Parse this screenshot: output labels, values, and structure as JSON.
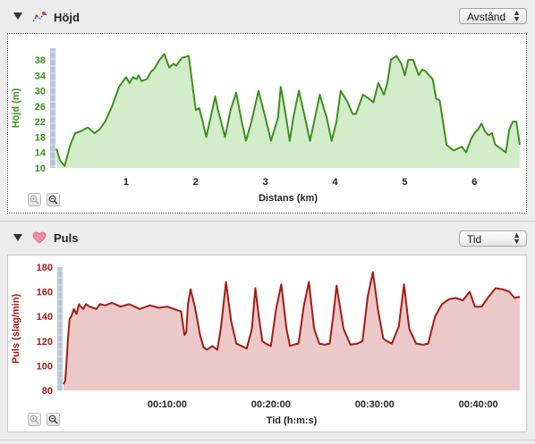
{
  "height_section": {
    "title": "Höjd",
    "axis_selector": "Avstånd",
    "ylabel": "Höjd (m)",
    "xlabel": "Distans (km)"
  },
  "pulse_section": {
    "title": "Puls",
    "axis_selector": "Tid",
    "ylabel": "Puls (slag/min)",
    "xlabel": "Tid (h:m:s)"
  },
  "chart_data": [
    {
      "type": "area",
      "xlabel": "Distans (km)",
      "ylabel": "Höjd (m)",
      "xlim": [
        0,
        6.65
      ],
      "ylim": [
        10,
        41
      ],
      "x_ticks": [
        "1",
        "2",
        "3",
        "4",
        "5",
        "6"
      ],
      "y_ticks": [
        "10",
        "14",
        "18",
        "22",
        "26",
        "30",
        "34",
        "38"
      ],
      "color": "#3d8f1e",
      "fill": "#d3ecca",
      "x": [
        0,
        0.05,
        0.12,
        0.2,
        0.27,
        0.35,
        0.45,
        0.55,
        0.62,
        0.7,
        0.8,
        0.9,
        1.0,
        1.05,
        1.1,
        1.15,
        1.18,
        1.22,
        1.3,
        1.36,
        1.4,
        1.48,
        1.55,
        1.62,
        1.68,
        1.72,
        1.8,
        1.9,
        2.0,
        2.05,
        2.1,
        2.15,
        2.2,
        2.28,
        2.32,
        2.42,
        2.5,
        2.58,
        2.66,
        2.72,
        2.8,
        2.9,
        3.0,
        3.08,
        3.18,
        3.22,
        3.28,
        3.35,
        3.4,
        3.48,
        3.58,
        3.64,
        3.7,
        3.78,
        3.88,
        3.95,
        4.02,
        4.08,
        4.18,
        4.25,
        4.3,
        4.4,
        4.48,
        4.55,
        4.62,
        4.7,
        4.75,
        4.8,
        4.88,
        4.95,
        5.0,
        5.05,
        5.12,
        5.2,
        5.25,
        5.3,
        5.4,
        5.45,
        5.5,
        5.6,
        5.7,
        5.82,
        5.88,
        5.95,
        6.0,
        6.05,
        6.1,
        6.15,
        6.2,
        6.25,
        6.3,
        6.38,
        6.45,
        6.5,
        6.55,
        6.6,
        6.65
      ],
      "y": [
        15,
        12,
        10.5,
        16,
        19,
        19.5,
        20.5,
        19,
        20,
        22,
        26,
        31,
        33.5,
        32,
        33.5,
        33,
        34,
        32.5,
        33,
        35,
        35.5,
        38,
        39.5,
        36,
        37,
        36.5,
        38.5,
        39,
        25,
        25.5,
        22,
        18,
        22,
        28.5,
        25,
        18,
        25,
        29.5,
        22,
        17,
        22,
        30,
        23,
        17,
        23,
        31,
        25,
        17,
        23,
        30,
        22,
        17,
        22,
        29,
        23,
        17,
        22,
        30,
        27,
        24,
        24,
        29,
        28,
        27,
        32,
        29,
        32,
        38,
        39,
        37,
        34,
        38,
        38,
        34,
        35.5,
        35,
        33,
        28,
        27.5,
        16,
        14.5,
        15.5,
        14,
        17.5,
        19,
        20,
        21.5,
        19.5,
        18.5,
        19,
        16,
        15,
        14,
        20,
        22,
        22,
        16
      ]
    },
    {
      "type": "area",
      "xlabel": "Tid (h:m:s)",
      "ylabel": "Puls (slag/min)",
      "xlim": [
        0,
        2640
      ],
      "ylim": [
        80,
        180
      ],
      "x_ticks": [
        "00:10:00",
        "00:20:00",
        "00:30:00",
        "00:40:00"
      ],
      "y_ticks": [
        "80",
        "100",
        "120",
        "140",
        "160",
        "180"
      ],
      "color": "#a41a14",
      "fill": "#ebc9c9",
      "x": [
        0,
        10,
        18,
        25,
        35,
        45,
        60,
        75,
        90,
        100,
        115,
        130,
        150,
        170,
        190,
        210,
        240,
        280,
        330,
        380,
        440,
        500,
        550,
        600,
        640,
        680,
        700,
        710,
        720,
        735,
        760,
        790,
        810,
        830,
        860,
        890,
        910,
        940,
        970,
        1000,
        1030,
        1060,
        1090,
        1110,
        1130,
        1150,
        1170,
        1200,
        1230,
        1260,
        1290,
        1310,
        1330,
        1360,
        1390,
        1420,
        1450,
        1480,
        1510,
        1540,
        1560,
        1580,
        1620,
        1660,
        1700,
        1730,
        1760,
        1790,
        1820,
        1850,
        1870,
        1900,
        1940,
        1970,
        2000,
        2040,
        2080,
        2110,
        2150,
        2190,
        2230,
        2270,
        2310,
        2350,
        2380,
        2420,
        2460,
        2500,
        2540,
        2580,
        2610,
        2640
      ],
      "y": [
        85,
        88,
        104,
        120,
        138,
        140,
        146,
        142,
        150,
        148,
        146,
        150,
        148,
        147,
        146,
        150,
        149,
        151,
        148,
        150,
        146,
        149,
        147,
        148,
        146,
        144,
        125,
        127,
        150,
        162,
        148,
        125,
        115,
        113,
        116,
        113,
        130,
        168,
        136,
        118,
        116,
        114,
        130,
        163,
        140,
        120,
        118,
        116,
        146,
        166,
        130,
        116,
        117,
        118,
        148,
        168,
        130,
        118,
        117,
        118,
        140,
        165,
        130,
        117,
        118,
        120,
        156,
        176,
        145,
        122,
        120,
        118,
        132,
        166,
        130,
        118,
        117,
        118,
        140,
        150,
        154,
        155,
        153,
        160,
        148,
        148,
        156,
        163,
        162,
        160,
        155,
        156
      ]
    }
  ]
}
